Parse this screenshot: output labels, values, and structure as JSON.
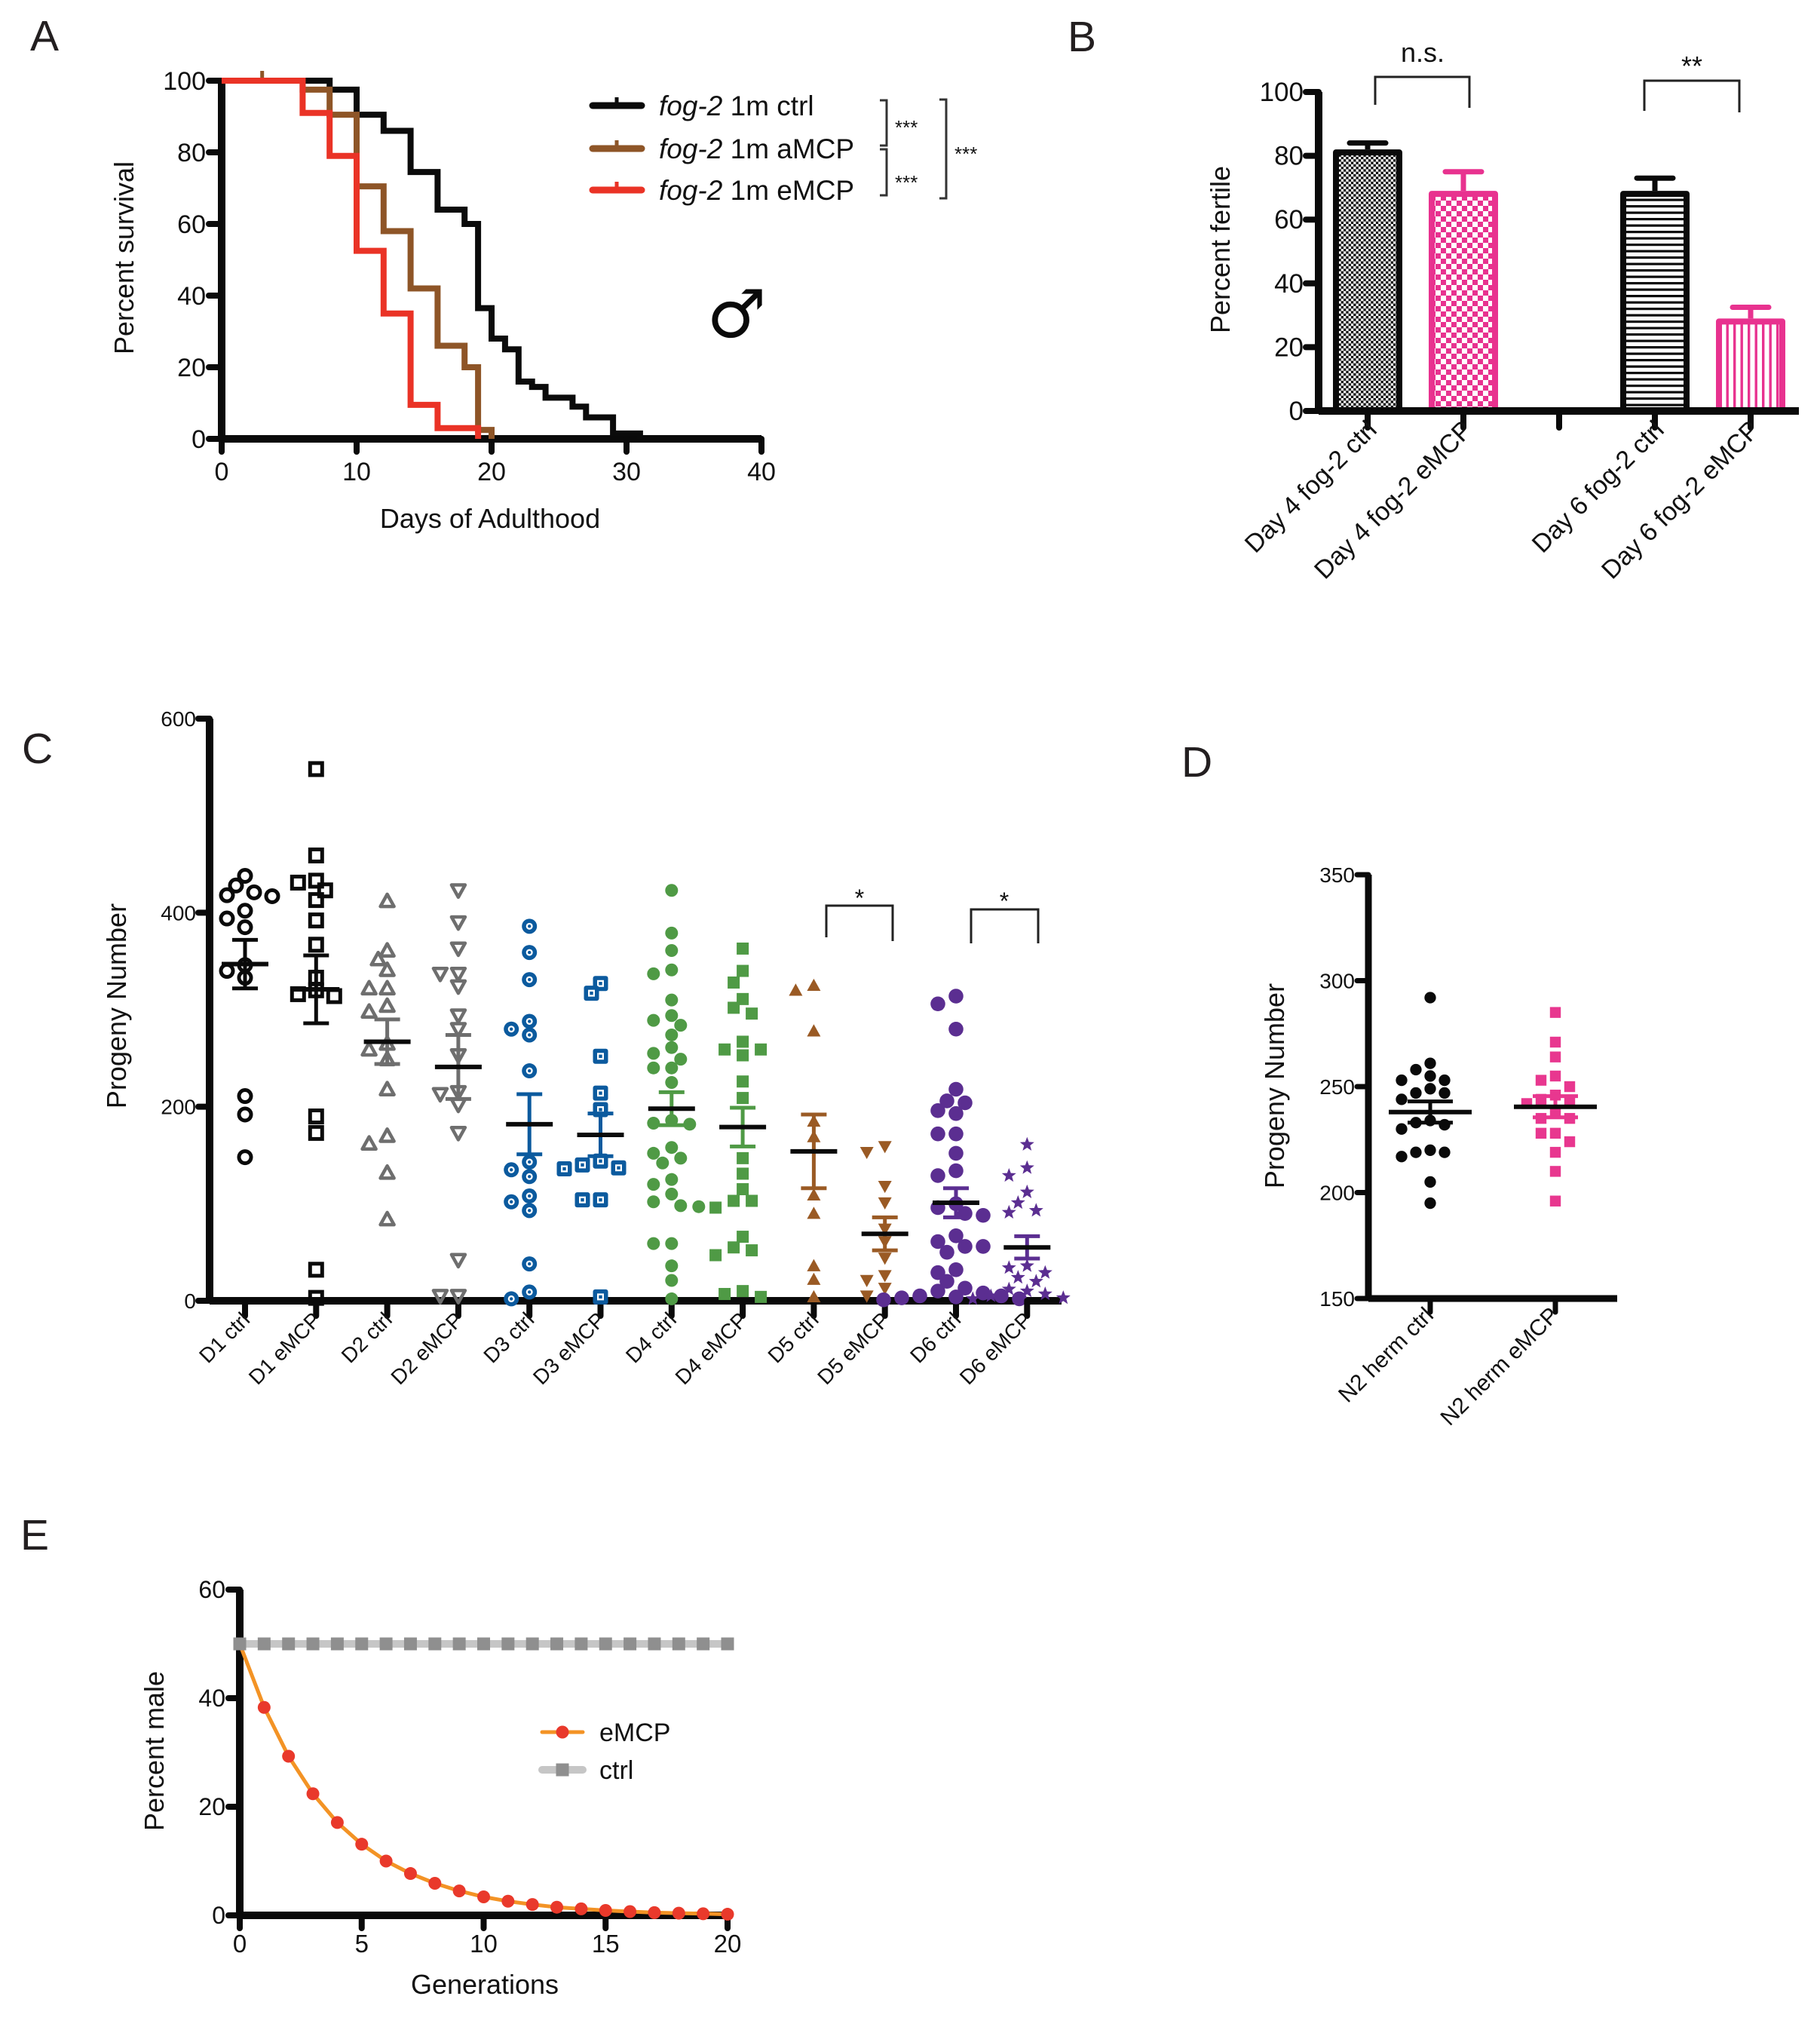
{
  "chart_data": [
    {
      "panel": "A",
      "type": "line",
      "style": "survival-step",
      "title": "",
      "xlabel": "Days of Adulthood",
      "ylabel": "Percent survival",
      "xlim": [
        0,
        40
      ],
      "ylim": [
        0,
        100
      ],
      "xticks": [
        0,
        10,
        20,
        30,
        40
      ],
      "yticks": [
        0,
        20,
        40,
        60,
        80,
        100
      ],
      "grid": false,
      "legend": "top-right",
      "series": [
        {
          "name": "fog-2 1m ctrl",
          "italic_part": "fog-2",
          "rest": " 1m ctrl",
          "color": "#0b0b0b",
          "steps": [
            [
              0,
              100
            ],
            [
              8,
              97.5
            ],
            [
              10,
              90.5
            ],
            [
              12,
              86
            ],
            [
              14,
              74.5
            ],
            [
              16,
              64
            ],
            [
              18,
              60
            ],
            [
              19,
              36.5
            ],
            [
              20,
              28
            ],
            [
              21,
              25
            ],
            [
              22,
              16
            ],
            [
              23,
              14.5
            ],
            [
              24,
              11.5
            ],
            [
              26,
              9
            ],
            [
              27,
              6
            ],
            [
              29,
              1.5
            ],
            [
              31,
              0
            ]
          ],
          "censored": []
        },
        {
          "name": "fog-2 1m aMCP",
          "italic_part": "fog-2",
          "rest": " 1m aMCP",
          "color": "#8e5527",
          "steps": [
            [
              0,
              100
            ],
            [
              6,
              97.5
            ],
            [
              8,
              90.5
            ],
            [
              10,
              70.5
            ],
            [
              12,
              58
            ],
            [
              14,
              42
            ],
            [
              16,
              26
            ],
            [
              18,
              20
            ],
            [
              19,
              2.5
            ],
            [
              20,
              0
            ]
          ],
          "censored": [
            [
              3,
              100
            ]
          ]
        },
        {
          "name": "fog-2 1m eMCP",
          "italic_part": "fog-2",
          "rest": " 1m eMCP",
          "color": "#ea3326",
          "steps": [
            [
              0,
              100
            ],
            [
              6,
              91
            ],
            [
              8,
              79
            ],
            [
              10,
              52.5
            ],
            [
              12,
              35
            ],
            [
              14,
              9.5
            ],
            [
              16,
              3
            ],
            [
              19,
              0
            ]
          ],
          "censored": []
        }
      ],
      "significance": [
        {
          "between": [
            0,
            1
          ],
          "label": "***"
        },
        {
          "between": [
            1,
            2
          ],
          "label": "***"
        },
        {
          "between": [
            0,
            2
          ],
          "label": "***"
        }
      ],
      "symbol": "♂"
    },
    {
      "panel": "B",
      "type": "bar",
      "title": "",
      "xlabel": "",
      "ylabel": "Percent fertile",
      "categories": [
        "Day 4 fog-2 ctrl",
        "Day 4 fog-2 eMCP",
        "",
        "Day 6 fog-2 ctrl",
        "Day 6 fog-2 eMCP"
      ],
      "values": [
        82,
        69,
        null,
        69,
        29
      ],
      "error_sem": [
        2,
        6,
        null,
        4,
        3.5
      ],
      "colors": [
        "#0a0a0a",
        "#e8328f",
        null,
        "#0a0a0a",
        "#e8328f"
      ],
      "fill_patterns": [
        "fine-checker",
        "checker",
        null,
        "horizontal-stripes",
        "vertical-stripes"
      ],
      "ylim": [
        0,
        100
      ],
      "yticks": [
        0,
        20,
        40,
        60,
        80,
        100
      ],
      "grid": false,
      "legend": "none",
      "significance": [
        {
          "between": [
            0,
            1
          ],
          "label": "n.s."
        },
        {
          "between": [
            3,
            4
          ],
          "label": "**"
        }
      ]
    },
    {
      "panel": "C",
      "type": "scatter",
      "style": "dot-plot-mean-sem",
      "title": "",
      "xlabel": "",
      "ylabel": "Progeny Number",
      "ylim": [
        0,
        600
      ],
      "yticks": [
        0,
        200,
        400,
        600
      ],
      "grid": false,
      "legend": "none",
      "groups": [
        {
          "name": "D1 ctrl",
          "color": "#0a0a0a",
          "marker": "open-circle",
          "mean": 347,
          "sem": 25,
          "values": [
            438,
            428,
            421,
            418,
            417,
            402,
            394,
            385,
            346,
            340,
            333,
            211,
            192,
            148
          ]
        },
        {
          "name": "D1 eMCP",
          "color": "#0a0a0a",
          "marker": "open-square",
          "mean": 321,
          "sem": 35,
          "values": [
            548,
            459,
            433,
            431,
            423,
            413,
            392,
            367,
            333,
            320,
            316,
            314,
            190,
            173,
            32,
            3
          ]
        },
        {
          "name": "D2 ctrl",
          "color": "#6e6e6e",
          "marker": "open-triangle",
          "mean": 267,
          "sem": 23,
          "values": [
            412,
            361,
            352,
            341,
            322,
            322,
            304,
            298,
            265,
            259,
            249,
            218,
            170,
            162,
            132,
            84
          ]
        },
        {
          "name": "D2 eMCP",
          "color": "#6e6e6e",
          "marker": "open-inverted-triangle",
          "mean": 241,
          "sem": 33,
          "values": [
            423,
            390,
            363,
            337,
            337,
            324,
            294,
            280,
            253,
            215,
            213,
            202,
            173,
            42,
            5,
            5
          ]
        },
        {
          "name": "D3 ctrl",
          "color": "#0b5a9e",
          "marker": "dotted-circle",
          "mean": 182,
          "sem": 31,
          "values": [
            386,
            359,
            331,
            288,
            280,
            274,
            237,
            143,
            135,
            128,
            108,
            102,
            93,
            38,
            9,
            2
          ]
        },
        {
          "name": "D3 eMCP",
          "color": "#0b5a9e",
          "marker": "dotted-square",
          "mean": 171,
          "sem": 22,
          "values": [
            327,
            317,
            252,
            214,
            197,
            144,
            140,
            137,
            136,
            104,
            104,
            4
          ]
        },
        {
          "name": "D4 ctrl",
          "color": "#4f9a45",
          "marker": "filled-circle",
          "mean": 198,
          "sem": 17,
          "values": [
            423,
            379,
            361,
            341,
            337,
            310,
            294,
            289,
            284,
            274,
            261,
            255,
            249,
            240,
            240,
            225,
            186,
            183,
            182,
            158,
            152,
            147,
            142,
            125,
            120,
            110,
            102,
            98,
            97,
            59,
            59,
            36,
            21,
            2
          ]
        },
        {
          "name": "D4 eMCP",
          "color": "#4f9a45",
          "marker": "filled-square",
          "mean": 179,
          "sem": 20,
          "values": [
            363,
            340,
            328,
            311,
            302,
            296,
            267,
            259,
            259,
            253,
            226,
            209,
            147,
            131,
            115,
            103,
            103,
            96,
            66,
            55,
            52,
            47,
            10,
            7,
            4
          ]
        },
        {
          "name": "D5 ctrl",
          "color": "#9a5a24",
          "marker": "filled-triangle",
          "mean": 154,
          "sem": 38,
          "values": [
            325,
            320,
            278,
            185,
            169,
            109,
            90,
            36,
            22,
            4
          ]
        },
        {
          "name": "D5 eMCP",
          "color": "#9a5a24",
          "marker": "filled-inverted-triangle",
          "mean": 69,
          "sem": 17,
          "values": [
            159,
            153,
            118,
            101,
            74,
            61,
            44,
            26,
            21,
            13,
            5
          ]
        },
        {
          "name": "D6 ctrl",
          "color": "#5b2e91",
          "marker": "filled-circle",
          "mean": 101,
          "sem": 15,
          "values": [
            314,
            306,
            280,
            218,
            206,
            204,
            196,
            193,
            172,
            172,
            152,
            134,
            129,
            100,
            96,
            90,
            88,
            67,
            61,
            56,
            56,
            50,
            32,
            29,
            20,
            13,
            10,
            8,
            5,
            5,
            4,
            3,
            2,
            1
          ]
        },
        {
          "name": "D6 eMCP",
          "color": "#5b2e91",
          "marker": "star",
          "mean": 55,
          "sem": 11.5,
          "values": [
            161,
            137,
            129,
            112,
            101,
            93,
            91,
            36,
            34,
            29,
            24,
            20,
            12,
            10,
            7,
            5,
            3,
            2
          ]
        }
      ],
      "significance": [
        {
          "between": [
            8,
            9
          ],
          "label": "*"
        },
        {
          "between": [
            10,
            11
          ],
          "label": "*"
        }
      ]
    },
    {
      "panel": "D",
      "type": "scatter",
      "style": "dot-plot-mean-sem",
      "title": "",
      "xlabel": "",
      "ylabel": "Progeny Number",
      "ylim": [
        150,
        350
      ],
      "yticks": [
        150,
        200,
        250,
        300,
        350
      ],
      "grid": false,
      "legend": "none",
      "groups": [
        {
          "name": "N2 herm ctrl",
          "color": "#0a0a0a",
          "marker": "filled-circle",
          "mean": 238,
          "sem": 5,
          "values": [
            292,
            261,
            258,
            255,
            253,
            253,
            249,
            247,
            247,
            244,
            234,
            233,
            232,
            230,
            220,
            219,
            219,
            217,
            205,
            195
          ]
        },
        {
          "name": "N2 herm eMCP",
          "color": "#e8378f",
          "marker": "filled-square",
          "mean": 240.5,
          "sem": 5,
          "values": [
            285,
            271,
            264,
            255,
            253,
            250,
            246,
            244,
            243,
            242,
            238,
            235,
            235,
            228,
            228,
            224,
            219,
            210,
            196
          ]
        }
      ]
    },
    {
      "panel": "E",
      "type": "line",
      "title": "",
      "xlabel": "Generations",
      "ylabel": "Percent male",
      "xlim": [
        0,
        20
      ],
      "ylim": [
        0,
        60
      ],
      "xticks": [
        0,
        5,
        10,
        15,
        20
      ],
      "yticks": [
        0,
        20,
        40,
        60
      ],
      "grid": false,
      "legend": "center-right",
      "x": [
        0,
        1,
        2,
        3,
        4,
        5,
        6,
        7,
        8,
        9,
        10,
        11,
        12,
        13,
        14,
        15,
        16,
        17,
        18,
        19,
        20
      ],
      "series": [
        {
          "name": "eMCP",
          "color": "#f39325",
          "marker_color": "#e9392b",
          "marker": "circle",
          "values": [
            50,
            38.3,
            29.3,
            22.4,
            17.1,
            13.1,
            10.0,
            7.7,
            5.9,
            4.5,
            3.4,
            2.6,
            2.0,
            1.5,
            1.2,
            0.9,
            0.7,
            0.5,
            0.4,
            0.3,
            0.2
          ]
        },
        {
          "name": "ctrl",
          "color": "#c6c6c6",
          "marker_color": "#8f8f8f",
          "marker": "square",
          "values": [
            50,
            50,
            50,
            50,
            50,
            50,
            50,
            50,
            50,
            50,
            50,
            50,
            50,
            50,
            50,
            50,
            50,
            50,
            50,
            50,
            50
          ]
        }
      ]
    }
  ]
}
